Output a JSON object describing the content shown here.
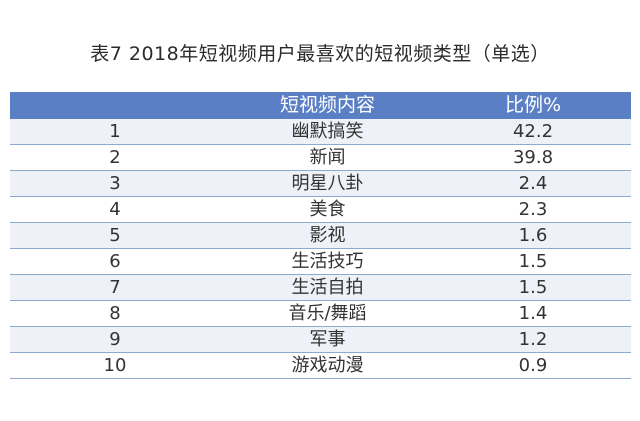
{
  "table": {
    "title": "表7  2018年短视频用户最喜欢的短视频类型（单选）",
    "headers": [
      "",
      "短视频内容",
      "比例%"
    ],
    "rows": [
      {
        "rank": "1",
        "content": "幽默搞笑",
        "percent": "42.2"
      },
      {
        "rank": "2",
        "content": "新闻",
        "percent": "39.8"
      },
      {
        "rank": "3",
        "content": "明星八卦",
        "percent": "2.4"
      },
      {
        "rank": "4",
        "content": "美食",
        "percent": "2.3"
      },
      {
        "rank": "5",
        "content": "影视",
        "percent": "1.6"
      },
      {
        "rank": "6",
        "content": "生活技巧",
        "percent": "1.5"
      },
      {
        "rank": "7",
        "content": "生活自拍",
        "percent": "1.5"
      },
      {
        "rank": "8",
        "content": "音乐/舞蹈",
        "percent": "1.4"
      },
      {
        "rank": "9",
        "content": "军事",
        "percent": "1.2"
      },
      {
        "rank": "10",
        "content": "游戏动漫",
        "percent": "0.9"
      }
    ]
  },
  "colors": {
    "header_bg": "#5b7fc4",
    "row_band": "#eef1f7",
    "divider": "#8fa8cf"
  }
}
